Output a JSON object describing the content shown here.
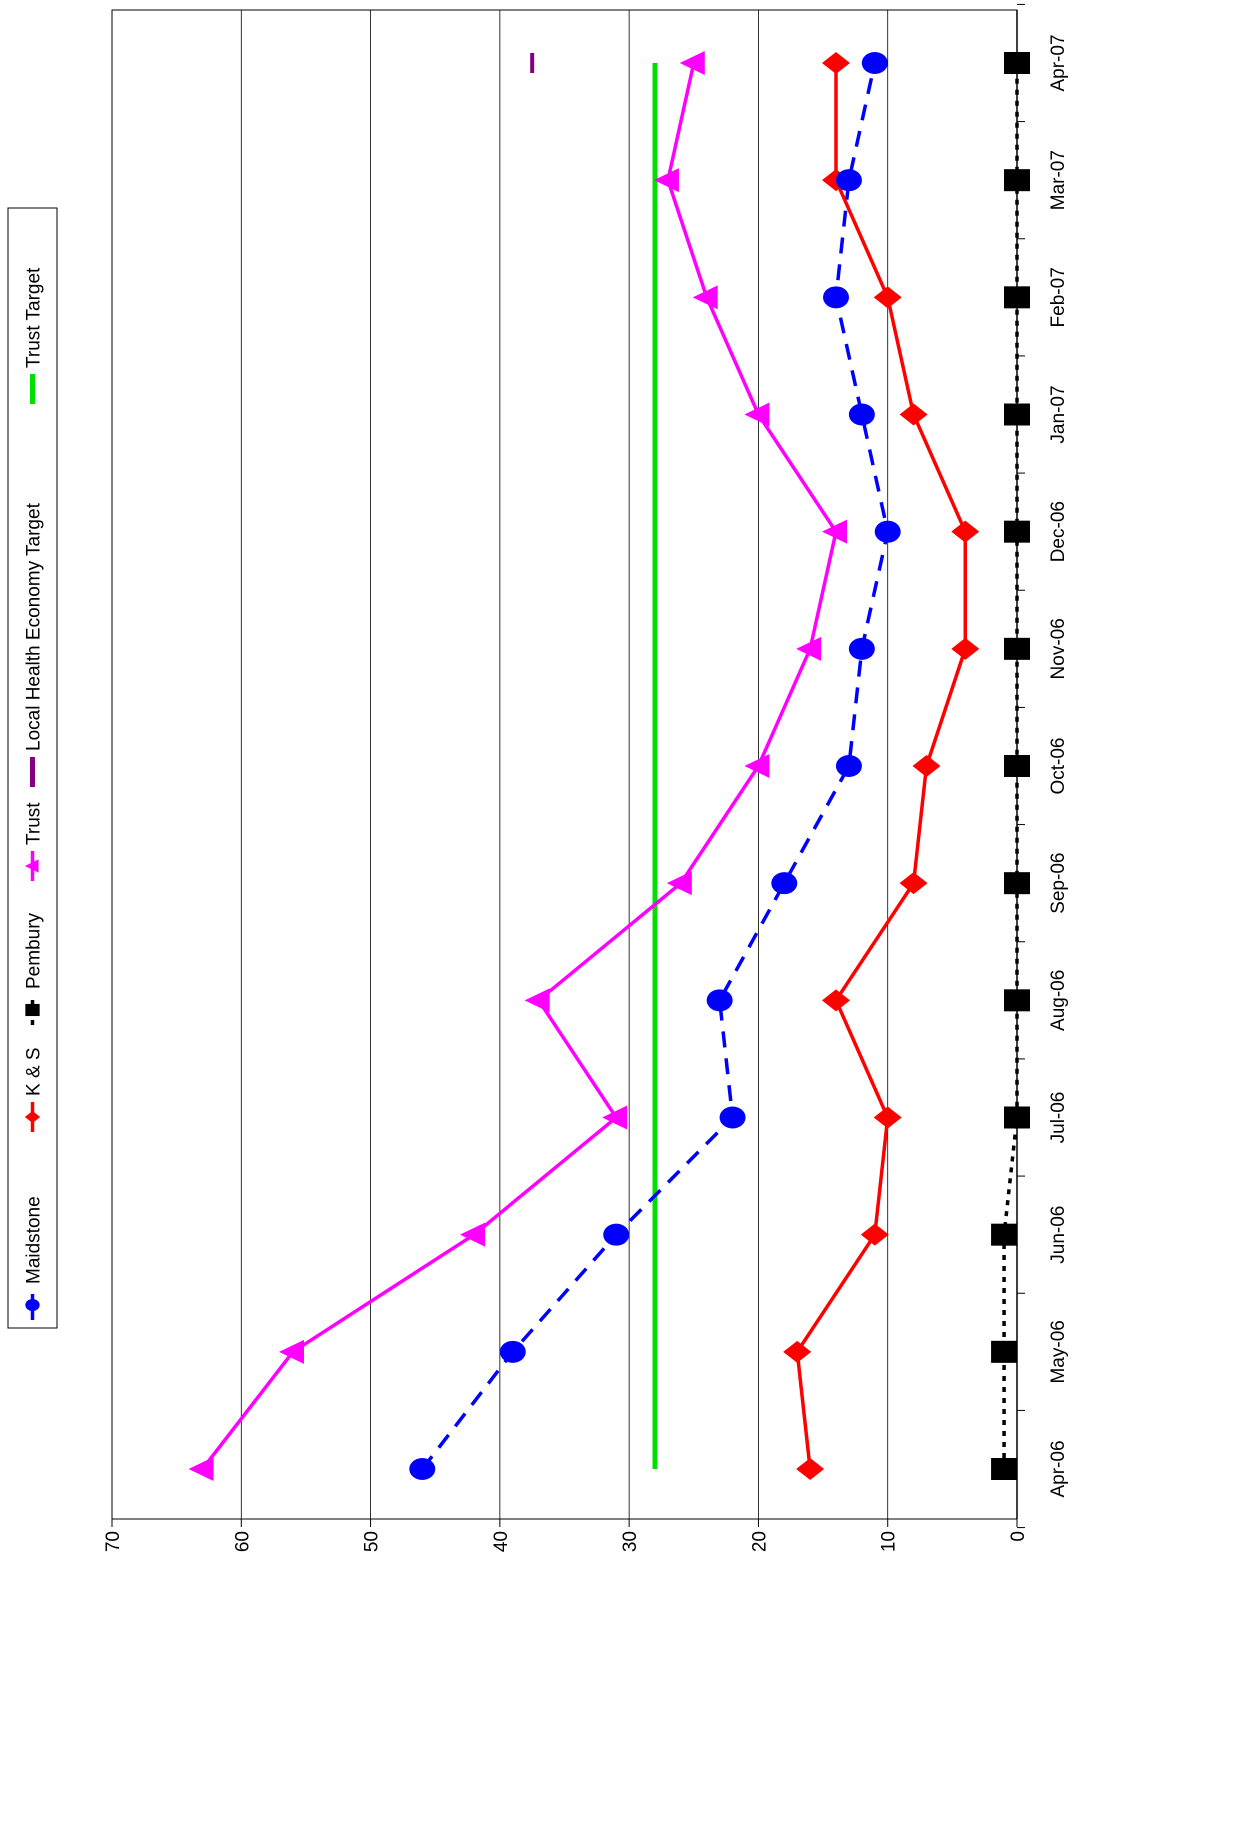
{
  "chart_data": {
    "type": "line",
    "orientation": "rotated-90-clockwise",
    "title": "",
    "xlabel": "",
    "ylabel": "",
    "categories": [
      "Apr-06",
      "May-06",
      "Jun-06",
      "Jul-06",
      "Aug-06",
      "Sep-06",
      "Oct-06",
      "Nov-06",
      "Dec-06",
      "Jan-07",
      "Feb-07",
      "Mar-07",
      "Apr-07"
    ],
    "ylim": [
      0,
      70
    ],
    "yticks": [
      "0",
      "10",
      "20",
      "30",
      "40",
      "50",
      "60",
      "70"
    ],
    "grid": true,
    "legend_position": "right",
    "series": [
      {
        "name": "Maidstone",
        "color": "#0000FF",
        "marker": "circle",
        "dash": "dashed",
        "values": [
          46,
          39,
          31,
          22,
          23,
          18,
          13,
          12,
          10,
          12,
          14,
          13,
          11
        ]
      },
      {
        "name": "K & S",
        "color": "#FF0000",
        "marker": "diamond",
        "dash": "solid",
        "values": [
          16,
          17,
          11,
          10,
          14,
          8,
          7,
          4,
          4,
          8,
          10,
          14,
          14
        ]
      },
      {
        "name": "Pembury",
        "color": "#000000",
        "marker": "square",
        "dash": "dotted",
        "values": [
          1,
          1,
          1,
          0,
          0,
          0,
          0,
          0,
          0,
          0,
          0,
          0,
          0
        ]
      },
      {
        "name": "Trust",
        "color": "#FF00FF",
        "marker": "triangle",
        "dash": "solid",
        "values": [
          63,
          56,
          42,
          31,
          37,
          26,
          20,
          16,
          14,
          20,
          24,
          27,
          25
        ]
      },
      {
        "name": "Local Health Economy Target",
        "color": "#800080",
        "marker": "none",
        "dash": "solid",
        "values": [
          null,
          null,
          null,
          null,
          null,
          null,
          null,
          null,
          null,
          null,
          null,
          null,
          37.5
        ]
      },
      {
        "name": "Trust Target",
        "color": "#00E000",
        "marker": "none",
        "dash": "solid",
        "values": [
          28,
          28,
          28,
          28,
          28,
          28,
          28,
          28,
          28,
          28,
          28,
          28,
          28
        ]
      }
    ]
  }
}
